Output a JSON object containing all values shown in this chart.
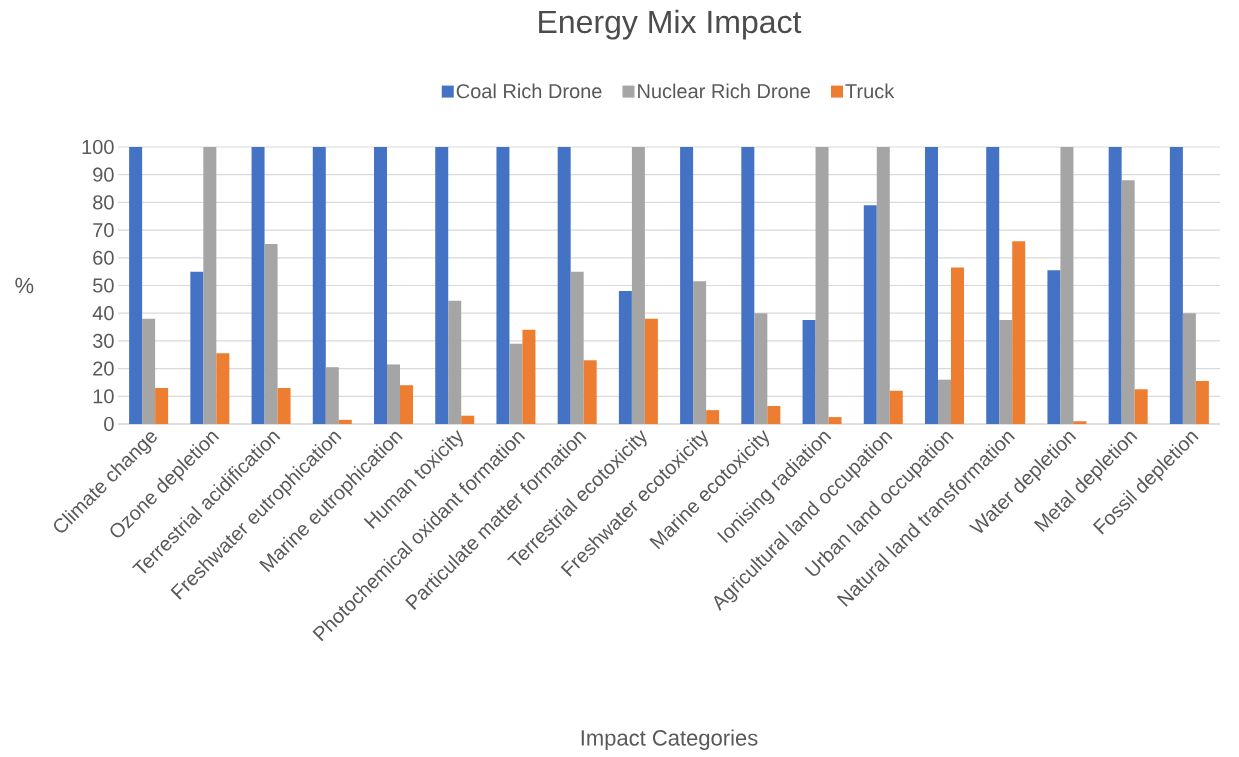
{
  "chart_data": {
    "type": "bar",
    "title": "Energy Mix Impact",
    "xlabel": "Impact Categories",
    "ylabel": "%",
    "categories": [
      "Climate change",
      "Ozone depletion",
      "Terrestrial acidification",
      "Freshwater eutrophication",
      "Marine eutrophication",
      "Human toxicity",
      "Photochemical oxidant formation",
      "Particulate matter formation",
      "Terrestrial ecotoxicity",
      "Freshwater ecotoxicity",
      "Marine ecotoxicity",
      "Ionising radiation",
      "Agricultural land occupation",
      "Urban land occupation",
      "Natural land transformation",
      "Water depletion",
      "Metal depletion",
      "Fossil depletion"
    ],
    "series": [
      {
        "name": "Coal Rich Drone",
        "color": "#4472c4",
        "values": [
          100,
          55,
          100,
          100,
          100,
          100,
          100,
          100,
          48,
          100,
          100,
          37.5,
          79,
          100,
          100,
          55.5,
          100,
          100
        ]
      },
      {
        "name": "Nuclear Rich Drone",
        "color": "#a5a5a5",
        "values": [
          38,
          100,
          65,
          20.5,
          21.5,
          44.5,
          29,
          55,
          100,
          51.5,
          40,
          100,
          100,
          16,
          37.5,
          100,
          88,
          40
        ]
      },
      {
        "name": "Truck",
        "color": "#ed7d31",
        "values": [
          13,
          25.5,
          13,
          1.5,
          14,
          3,
          34,
          23,
          38,
          5,
          6.5,
          2.5,
          12,
          56.5,
          66,
          1,
          12.5,
          15.5
        ]
      }
    ],
    "ylim": [
      0,
      100
    ],
    "yticks": [
      0,
      10,
      20,
      30,
      40,
      50,
      60,
      70,
      80,
      90,
      100
    ],
    "grid": "y",
    "legend": "top"
  }
}
